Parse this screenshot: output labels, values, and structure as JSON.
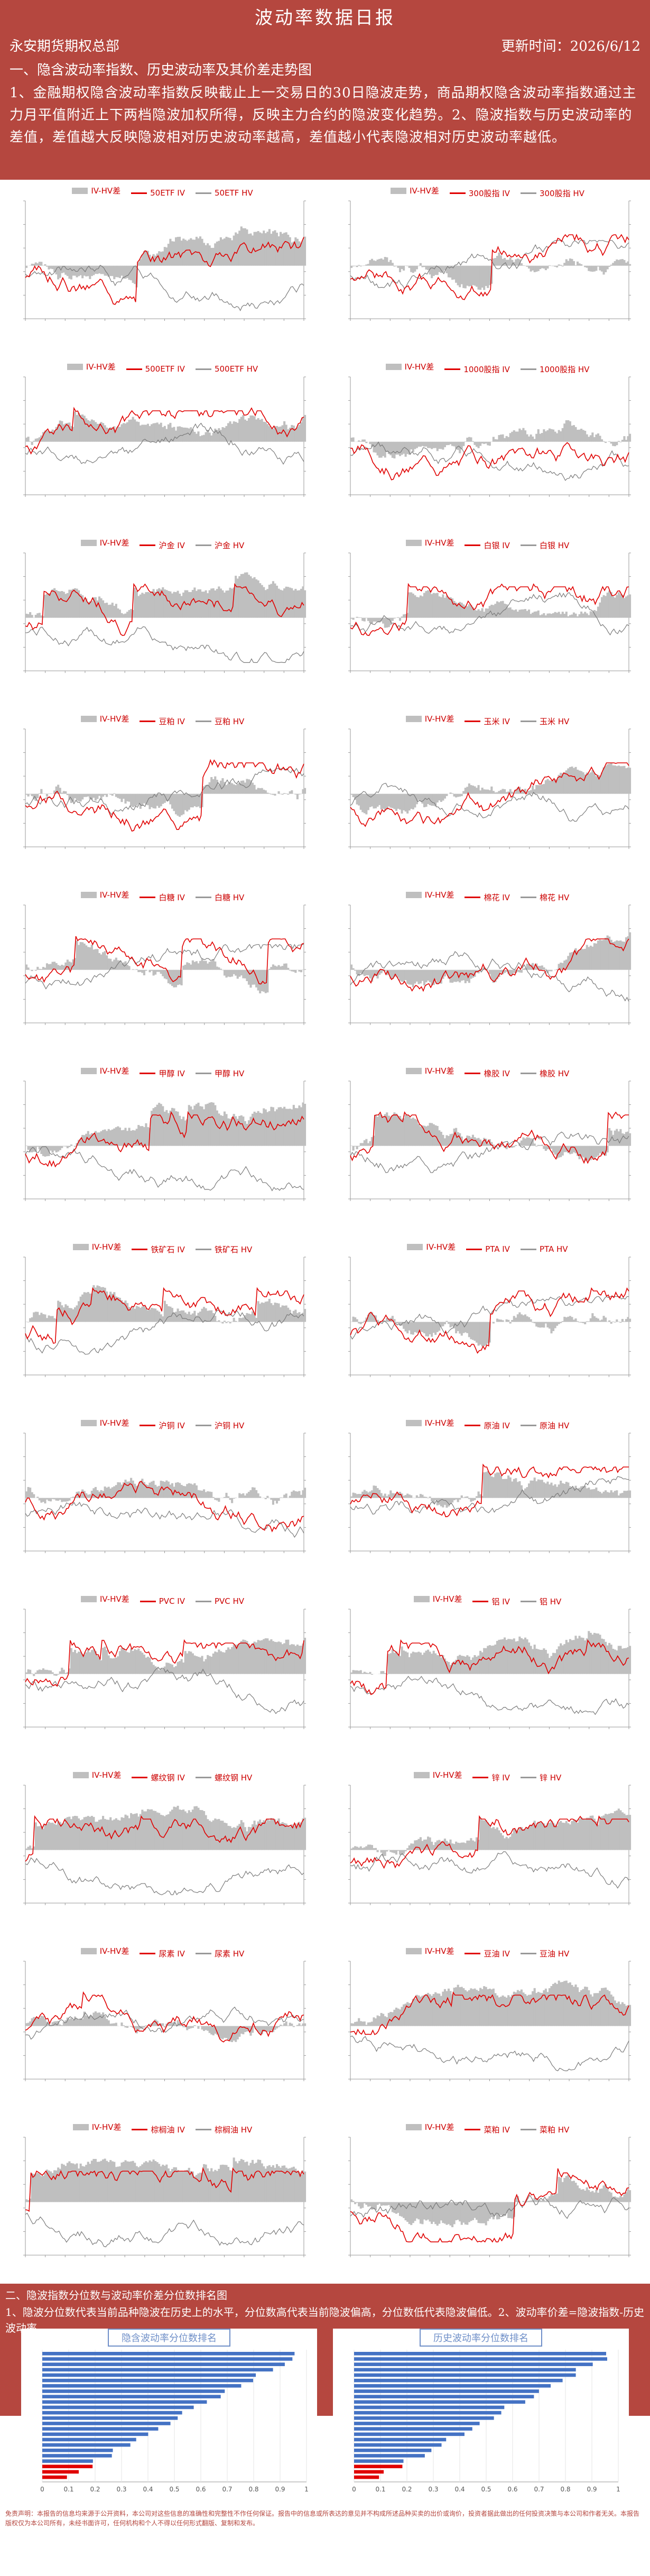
{
  "header": {
    "title": "波动率数据日报",
    "org": "永安期货期权总部",
    "update_label": "更新时间：",
    "update_date": "2026/6/12",
    "section1": "一、隐含波动率指数、历史波动率及其价差走势图",
    "description": "1、金融期权隐含波动率指数反映截止上一交易日的30日隐波走势，商品期权隐含波动率指数通过主力月平值附近上下两档隐波加权所得，反映主力合约的隐波变化趋势。2、隐波指数与历史波动率的差值，差值越大反映隐波相对历史波动率越高，差值越小代表隐波相对历史波动率越低。"
  },
  "chart_legend_prefix": "IV-HV差",
  "panels": [
    {
      "name": "50ETF",
      "iv": "50ETF IV",
      "hv": "50ETF HV"
    },
    {
      "name": "300股指",
      "iv": "300股指 IV",
      "hv": "300股指 HV"
    },
    {
      "name": "500ETF",
      "iv": "500ETF IV",
      "hv": "500ETF HV"
    },
    {
      "name": "1000股指",
      "iv": "1000股指 IV",
      "hv": "1000股指 HV"
    },
    {
      "name": "沪金",
      "iv": "沪金 IV",
      "hv": "沪金 HV"
    },
    {
      "name": "白银",
      "iv": "白银 IV",
      "hv": "白银 HV"
    },
    {
      "name": "豆粕",
      "iv": "豆粕 IV",
      "hv": "豆粕 HV"
    },
    {
      "name": "玉米",
      "iv": "玉米 IV",
      "hv": "玉米 HV"
    },
    {
      "name": "白糖",
      "iv": "白糖 IV",
      "hv": "白糖 HV"
    },
    {
      "name": "棉花",
      "iv": "棉花 IV",
      "hv": "棉花 HV"
    },
    {
      "name": "甲醇",
      "iv": "甲醇 IV",
      "hv": "甲醇 HV"
    },
    {
      "name": "橡胶",
      "iv": "橡胶 IV",
      "hv": "橡胶 HV"
    },
    {
      "name": "铁矿石",
      "iv": "铁矿石 IV",
      "hv": "铁矿石 HV"
    },
    {
      "name": "PTA",
      "iv": "PTA IV",
      "hv": "PTA HV"
    },
    {
      "name": "沪铜",
      "iv": "沪铜 IV",
      "hv": "沪铜 HV"
    },
    {
      "name": "原油",
      "iv": "原油 IV",
      "hv": "原油 HV"
    },
    {
      "name": "PVC",
      "iv": "PVC IV",
      "hv": "PVC HV"
    },
    {
      "name": "铝",
      "iv": "铝 IV",
      "hv": "铝 HV"
    },
    {
      "name": "螺纹钢",
      "iv": "螺纹钢 IV",
      "hv": "螺纹钢 HV"
    },
    {
      "name": "锌",
      "iv": "锌 IV",
      "hv": "锌 HV"
    },
    {
      "name": "尿素",
      "iv": "尿素 IV",
      "hv": "尿素 HV"
    },
    {
      "name": "豆油",
      "iv": "豆油 IV",
      "hv": "豆油 HV"
    },
    {
      "name": "棕榈油",
      "iv": "棕榈油 IV",
      "hv": "棕榈油 HV"
    },
    {
      "name": "菜粕",
      "iv": "菜粕 IV",
      "hv": "菜粕 HV"
    }
  ],
  "section2": {
    "title": "二、隐波指数分位数与波动率价差分位数排名图",
    "description": "1、隐波分位数代表当前品种隐波在历史上的水平，分位数高代表当前隐波偏高，分位数低代表隐波偏低。2、波动率价差=隐波指数-历史波动率。"
  },
  "rank_left": {
    "title": "隐含波动率分位数排名",
    "ticks": [
      "0",
      "0.1",
      "0.2",
      "0.3",
      "0.4",
      "0.5",
      "0.6",
      "0.7",
      "0.8",
      "0.9",
      "1"
    ]
  },
  "rank_right": {
    "title": "历史波动率分位数排名",
    "ticks": [
      "0",
      "0.1",
      "0.2",
      "0.3",
      "0.4",
      "0.5",
      "0.6",
      "0.7",
      "0.8",
      "0.9",
      "1"
    ]
  },
  "disclaimer": "免责声明：本报告的信息均来源于公开资料，本公司对这些信息的准确性和完整性不作任何保证。报告中的信息或所表达的意见并不构成所述品种买卖的出价或询价，投资者据此做出的任何投资决策与本公司和作者无关。本报告版权仅为本公司所有，未经书面许可，任何机构和个人不得以任何形式翻版、复制和发布。",
  "colors": {
    "banner": "#b5473f",
    "iv": "#e00000",
    "hv": "#7a7a7a",
    "diff": "#bfbfbf",
    "rank_bar": "#4472c4",
    "rank_low": "#e00000"
  }
}
